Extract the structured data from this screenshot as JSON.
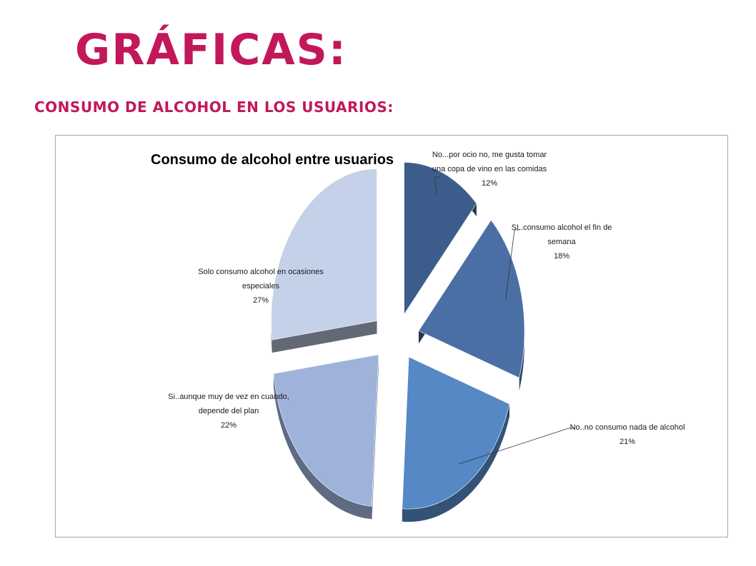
{
  "page": {
    "title": "GRÁFICAS:",
    "subtitle": "CONSUMO DE ALCOHOL EN LOS USUARIOS:",
    "title_color": "#c2185b"
  },
  "chart_data": {
    "type": "pie",
    "style": "3d-exploded",
    "title": "Consumo de alcohol entre usuarios",
    "unit": "%",
    "slices": [
      {
        "label_lines": [
          "No...por ocio no, me gusta tomar",
          "una copa de vino en las comidas"
        ],
        "value": 12,
        "value_label": "12%",
        "color": "#3c5d8c"
      },
      {
        "label_lines": [
          "SI..consumo alcohol el fin de",
          "semana"
        ],
        "value": 18,
        "value_label": "18%",
        "color": "#4a6fa5"
      },
      {
        "label_lines": [
          "No..no consumo nada de alcohol"
        ],
        "value": 21,
        "value_label": "21%",
        "color": "#5588c4"
      },
      {
        "label_lines": [
          "Si..aunque muy de vez en cuando,",
          "depende del plan"
        ],
        "value": 22,
        "value_label": "22%",
        "color": "#9fb3da"
      },
      {
        "label_lines": [
          "Solo consumo alcohol en ocasiones",
          "especiales"
        ],
        "value": 27,
        "value_label": "27%",
        "color": "#c5d1e8"
      }
    ]
  }
}
